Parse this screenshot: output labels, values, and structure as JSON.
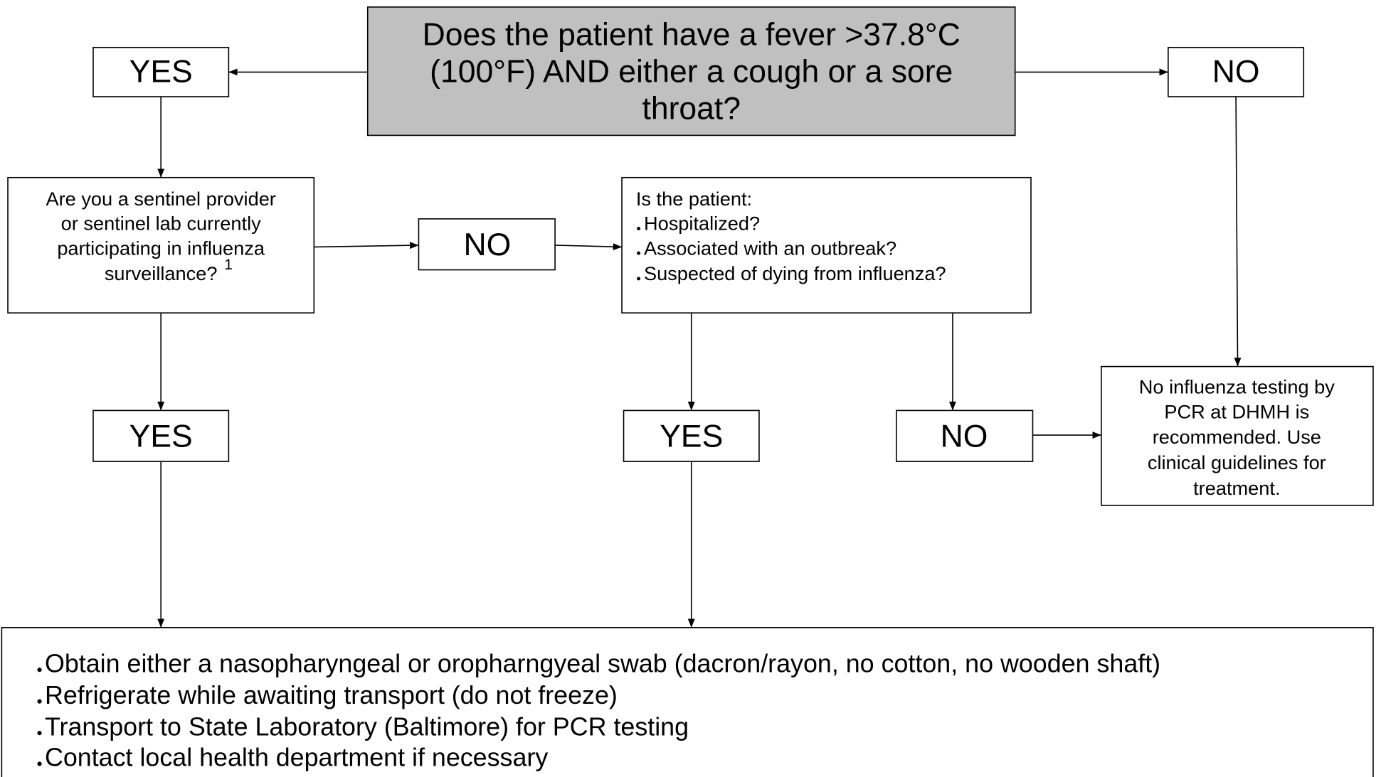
{
  "question": {
    "lines": [
      "Does the patient have a fever >37.8°C",
      "(100°F) AND either a cough or a sore",
      "throat?"
    ]
  },
  "yes_top": "YES",
  "no_top": "NO",
  "sentinel": {
    "lines": [
      "Are you a sentinel provider",
      "or sentinel lab currently",
      "participating in influenza",
      "surveillance?"
    ],
    "footnote": "1"
  },
  "no_sentinel": "NO",
  "patient": {
    "intro": "Is the patient:",
    "items": [
      "Hospitalized?",
      "Associated with an outbreak?",
      "Suspected of dying from influenza?"
    ]
  },
  "yes_sentinel": "YES",
  "yes_patient": "YES",
  "no_patient": "NO",
  "no_testing": {
    "lines": [
      "No influenza testing by",
      "PCR at DHMH is",
      "recommended. Use",
      "clinical guidelines for",
      "treatment."
    ]
  },
  "actions": {
    "items": [
      "Obtain either a nasopharyngeal or oropharngyeal swab (dacron/rayon, no cotton, no wooden shaft)",
      "Refrigerate while awaiting transport (do not freeze)",
      "Transport to State Laboratory (Baltimore) for PCR testing",
      "Contact local health department if necessary"
    ]
  }
}
